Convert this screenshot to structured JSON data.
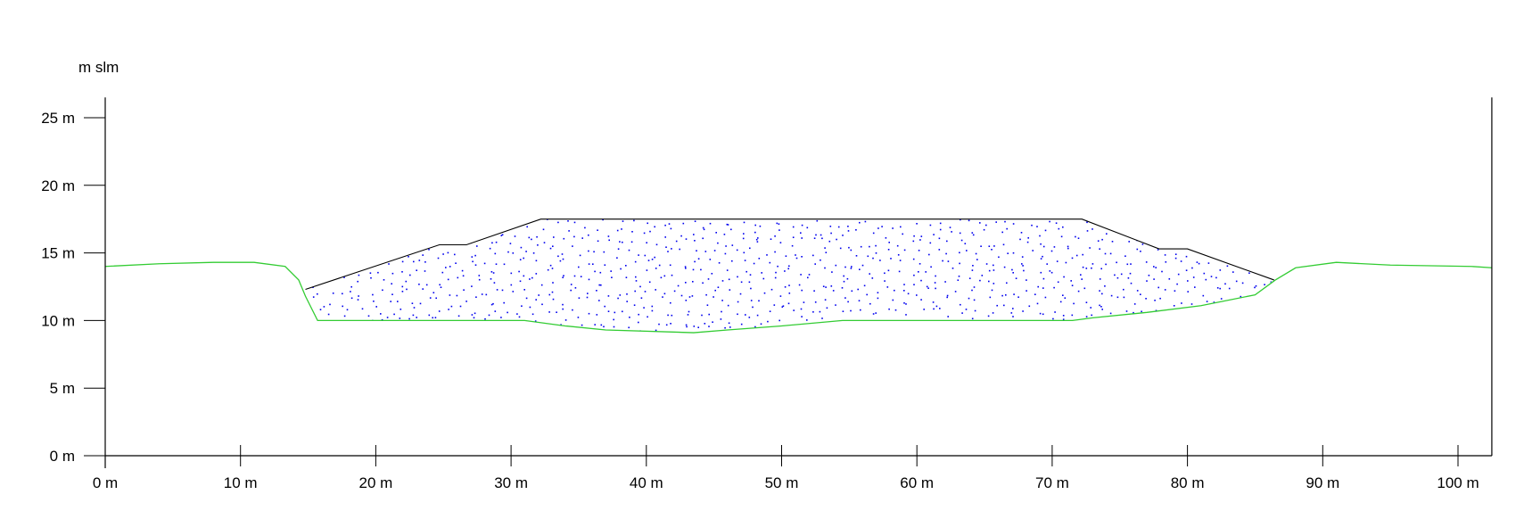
{
  "chart_data": {
    "type": "cross-section",
    "y_unit_label": "m slm",
    "x_ticks": [
      {
        "value": 0,
        "label": "0 m"
      },
      {
        "value": 10,
        "label": "10 m"
      },
      {
        "value": 20,
        "label": "20 m"
      },
      {
        "value": 30,
        "label": "30 m"
      },
      {
        "value": 40,
        "label": "40 m"
      },
      {
        "value": 50,
        "label": "50 m"
      },
      {
        "value": 60,
        "label": "60 m"
      },
      {
        "value": 70,
        "label": "70 m"
      },
      {
        "value": 80,
        "label": "80 m"
      },
      {
        "value": 90,
        "label": "90 m"
      },
      {
        "value": 100,
        "label": "100 m"
      }
    ],
    "y_ticks": [
      {
        "value": 0,
        "label": "0 m"
      },
      {
        "value": 5,
        "label": "5 m"
      },
      {
        "value": 10,
        "label": "10 m"
      },
      {
        "value": 15,
        "label": "15 m"
      },
      {
        "value": 20,
        "label": "20 m"
      },
      {
        "value": 25,
        "label": "25 m"
      }
    ],
    "xlim": [
      0,
      102.5
    ],
    "ylim": [
      0,
      26.5
    ],
    "ground_profile": {
      "color": "#33cc33",
      "points": [
        [
          0,
          14.0
        ],
        [
          4,
          14.2
        ],
        [
          8,
          14.3
        ],
        [
          11,
          14.3
        ],
        [
          13.3,
          14.0
        ],
        [
          14.3,
          13.0
        ],
        [
          14.8,
          11.8
        ],
        [
          15.7,
          10.0
        ],
        [
          20,
          10.0
        ],
        [
          26,
          10.0
        ],
        [
          31,
          10.0
        ],
        [
          34,
          9.6
        ],
        [
          37,
          9.3
        ],
        [
          43.5,
          9.1
        ],
        [
          46,
          9.3
        ],
        [
          50,
          9.6
        ],
        [
          54.5,
          10.0
        ],
        [
          60,
          10.0
        ],
        [
          65,
          10.0
        ],
        [
          71.5,
          10.0
        ],
        [
          73,
          10.2
        ],
        [
          77,
          10.6
        ],
        [
          81,
          11.1
        ],
        [
          85,
          11.9
        ],
        [
          86.5,
          13.0
        ],
        [
          88,
          13.9
        ],
        [
          91,
          14.3
        ],
        [
          95,
          14.1
        ],
        [
          101,
          14.0
        ],
        [
          102.5,
          13.9
        ]
      ]
    },
    "fill_outline": {
      "color": "#000000",
      "points": [
        [
          14.8,
          12.3
        ],
        [
          24.7,
          15.6
        ],
        [
          26.7,
          15.6
        ],
        [
          32.2,
          17.5
        ],
        [
          72.2,
          17.5
        ],
        [
          77.9,
          15.3
        ],
        [
          80.0,
          15.3
        ],
        [
          86.4,
          13.0
        ]
      ]
    },
    "fill_pattern_color": "#0000ee"
  }
}
